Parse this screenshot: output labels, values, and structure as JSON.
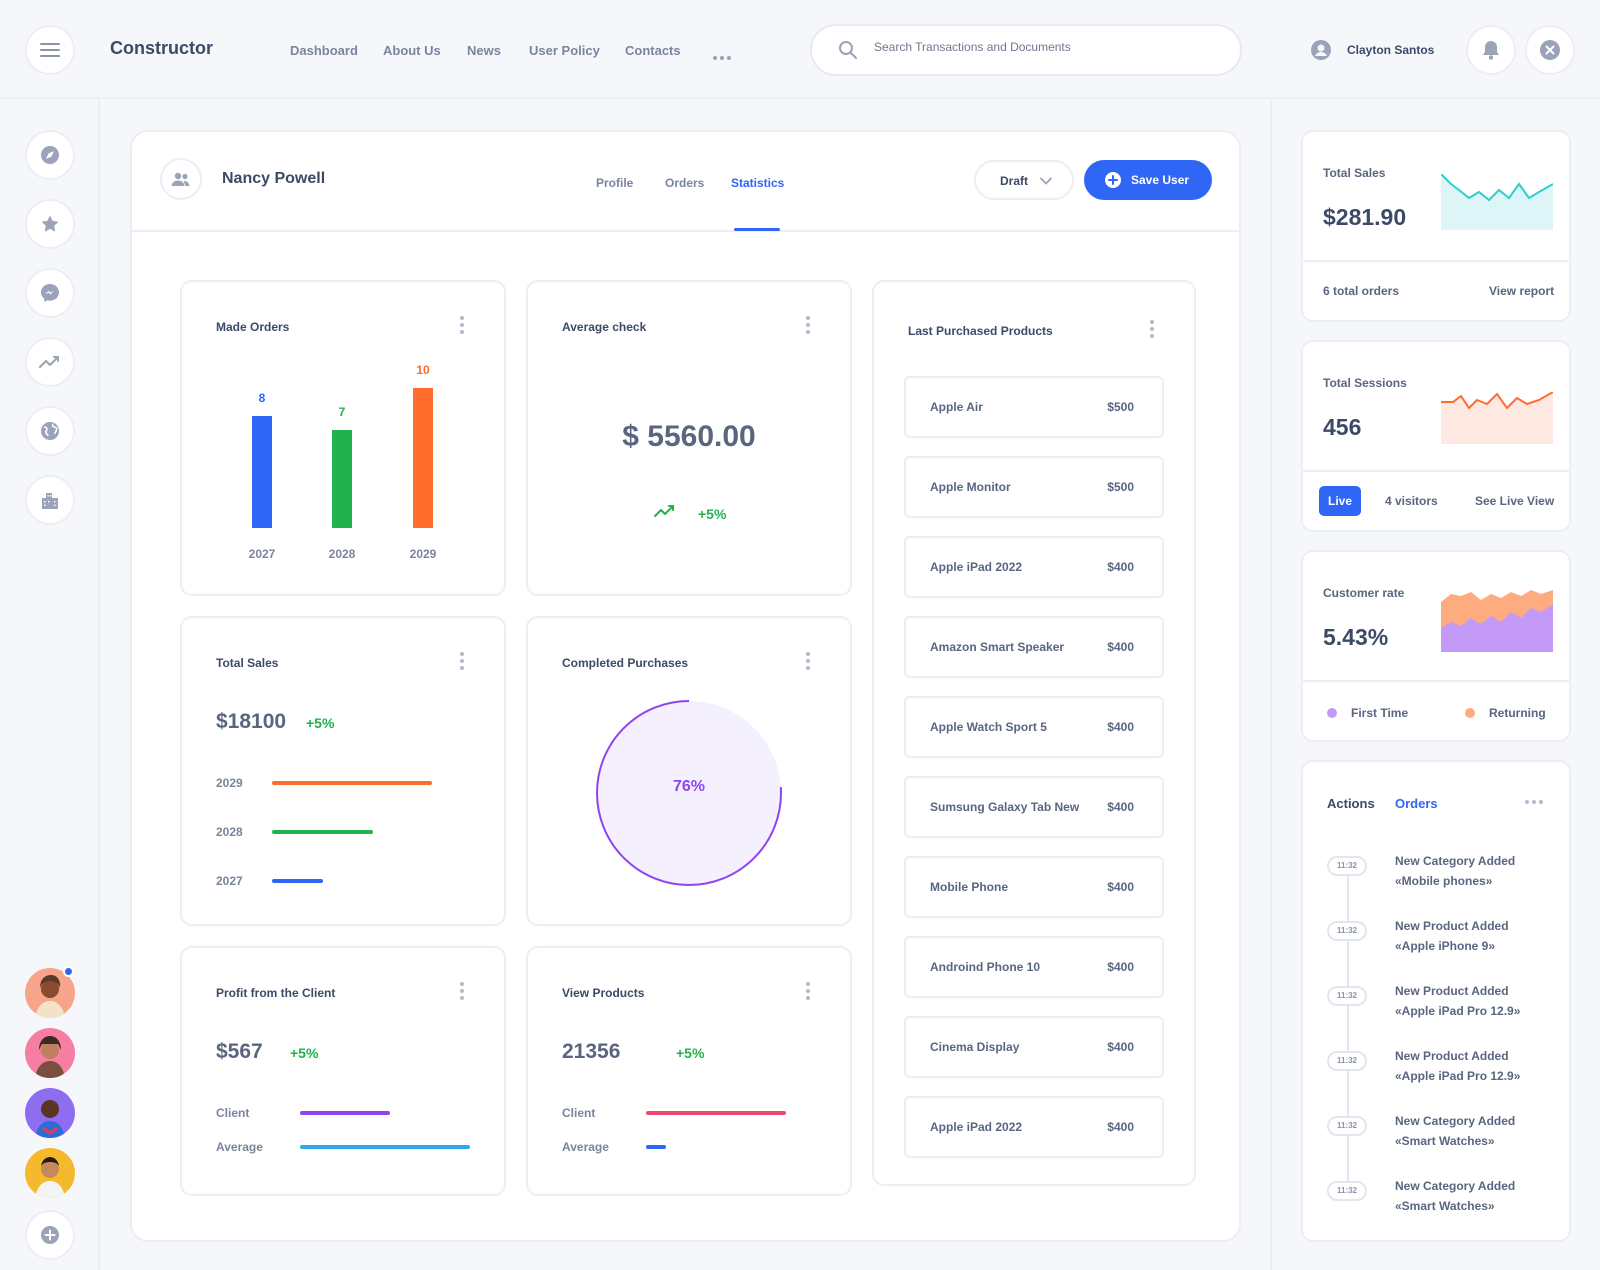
{
  "app": {
    "title": "Constructor"
  },
  "nav": [
    "Dashboard",
    "About Us",
    "News",
    "User Policy",
    "Contacts"
  ],
  "search": {
    "placeholder": "Search Transactions and Documents"
  },
  "user": {
    "name": "Clayton Santos"
  },
  "profile": {
    "name": "Nancy Powell",
    "tabs": [
      "Profile",
      "Orders",
      "Statistics"
    ],
    "active_tab": "Statistics",
    "status": "Draft",
    "save_label": "Save User"
  },
  "made_orders": {
    "title": "Made Orders",
    "chart_data": {
      "type": "bar",
      "categories": [
        "2027",
        "2028",
        "2029"
      ],
      "values": [
        8,
        7,
        10
      ],
      "colors": [
        "#2f66f6",
        "#22b14c",
        "#ff6c2c"
      ]
    }
  },
  "average_check": {
    "title": "Average check",
    "value": "$ 5560.00",
    "change": "+5%"
  },
  "total_sales_card": {
    "title": "Total Sales",
    "value": "$18100",
    "change": "+5%",
    "rows": [
      {
        "label": "2029",
        "fraction": 1.0,
        "color": "#ff6c2c"
      },
      {
        "label": "2028",
        "fraction": 0.63,
        "color": "#22b14c"
      },
      {
        "label": "2027",
        "fraction": 0.32,
        "color": "#2f66f6"
      }
    ]
  },
  "completed_purchases": {
    "title": "Completed Purchases",
    "value": "76%",
    "percent": 76,
    "color": "#8e45f0"
  },
  "profit": {
    "title": "Profit from the Client",
    "value": "$567",
    "change": "+5%",
    "rows": [
      {
        "label": "Client",
        "fraction": 0.53,
        "color": "#8e45f0"
      },
      {
        "label": "Average",
        "fraction": 1.0,
        "color": "#2ea9ee"
      }
    ]
  },
  "view_products": {
    "title": "View Products",
    "value": "21356",
    "change": "+5%",
    "rows": [
      {
        "label": "Client",
        "fraction": 1.0,
        "color": "#ef4872"
      },
      {
        "label": "Average",
        "fraction": 0.14,
        "color": "#2f66f6"
      }
    ]
  },
  "last_purchased": {
    "title": "Last Purchased Products",
    "items": [
      {
        "name": "Apple Air",
        "price": "$500"
      },
      {
        "name": "Apple Monitor",
        "price": "$500"
      },
      {
        "name": "Apple iPad 2022",
        "price": "$400"
      },
      {
        "name": "Amazon Smart Speaker",
        "price": "$400"
      },
      {
        "name": "Apple Watch Sport 5",
        "price": "$400"
      },
      {
        "name": "Sumsung Galaxy Tab New",
        "price": "$400"
      },
      {
        "name": "Mobile Phone",
        "price": "$400"
      },
      {
        "name": "Androind Phone 10",
        "price": "$400"
      },
      {
        "name": "Cinema Display",
        "price": "$400"
      },
      {
        "name": "Apple iPad 2022",
        "price": "$400"
      }
    ]
  },
  "right_total_sales": {
    "title": "Total Sales",
    "value": "$281.90",
    "orders": "6 total orders",
    "link": "View report"
  },
  "right_sessions": {
    "title": "Total Sessions",
    "value": "456",
    "live": "Live",
    "visitors": "4 visitors",
    "link": "See Live View"
  },
  "customer_rate": {
    "title": "Customer rate",
    "value": "5.43%",
    "legend": [
      {
        "label": "First Time",
        "color": "#c39af7"
      },
      {
        "label": "Returning",
        "color": "#ffab80"
      }
    ]
  },
  "actions": {
    "tabs": [
      "Actions",
      "Orders"
    ],
    "items": [
      {
        "time": "11:32",
        "title": "New Category Added",
        "detail": "«Mobile phones»"
      },
      {
        "time": "11:32",
        "title": "New Product Added",
        "detail": "«Apple iPhone 9»"
      },
      {
        "time": "11:32",
        "title": "New Product Added",
        "detail": "«Apple iPad Pro 12.9»"
      },
      {
        "time": "11:32",
        "title": "New Product Added",
        "detail": "«Apple iPad Pro 12.9»"
      },
      {
        "time": "11:32",
        "title": "New Category Added",
        "detail": "«Smart Watches»"
      },
      {
        "time": "11:32",
        "title": "New Category Added",
        "detail": "«Smart Watches»"
      }
    ]
  },
  "colors": {
    "accent": "#2f66f6",
    "green": "#22b14c",
    "orange": "#ff6c2c",
    "purple": "#8e45f0"
  }
}
